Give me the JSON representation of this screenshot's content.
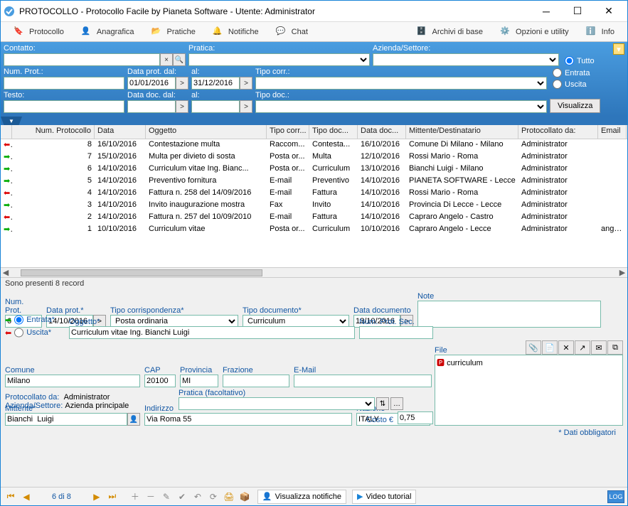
{
  "window": {
    "title": "PROTOCOLLO - Protocollo Facile by Pianeta Software - Utente: Administrator"
  },
  "toolbar": {
    "protocollo": "Protocollo",
    "anagrafica": "Anagrafica",
    "pratiche": "Pratiche",
    "notifiche": "Notifiche",
    "chat": "Chat",
    "archivi": "Archivi di base",
    "opzioni": "Opzioni e utility",
    "info": "Info"
  },
  "search": {
    "contatto_lbl": "Contatto:",
    "pratica_lbl": "Pratica:",
    "azienda_lbl": "Azienda/Settore:",
    "numprot_lbl": "Num. Prot.:",
    "dataprot_dal_lbl": "Data prot. dal:",
    "dataprot_dal": "01/01/2016",
    "al_lbl": "al:",
    "dataprot_al": "31/12/2016",
    "tipocorr_lbl": "Tipo corr.:",
    "testo_lbl": "Testo:",
    "datadoc_dal_lbl": "Data doc. dal:",
    "tipodoc_lbl": "Tipo doc.:",
    "visualizza_btn": "Visualizza",
    "radio_tutto": "Tutto",
    "radio_entrata": "Entrata",
    "radio_uscita": "Uscita"
  },
  "grid": {
    "cols": {
      "arrow": "",
      "num": "Num. Protocollo",
      "data": "Data",
      "oggetto": "Oggetto",
      "tipocorr": "Tipo corr...",
      "tipodoc": "Tipo doc...",
      "datadoc": "Data doc...",
      "mitt": "Mittente/Destinatario",
      "protda": "Protocollato da:",
      "email": "Email"
    },
    "rows": [
      {
        "dir": "in",
        "num": "8",
        "data": "16/10/2016",
        "ogg": "Contestazione multa",
        "tc": "Raccom...",
        "td": "Contesta...",
        "dd": "16/10/2016",
        "mitt": "Comune Di Milano - Milano",
        "pd": "Administrator",
        "em": ""
      },
      {
        "dir": "out",
        "num": "7",
        "data": "15/10/2016",
        "ogg": "Multa per divieto di sosta",
        "tc": "Posta or...",
        "td": "Multa",
        "dd": "12/10/2016",
        "mitt": "Rossi Mario - Roma",
        "pd": "Administrator",
        "em": ""
      },
      {
        "dir": "out",
        "num": "6",
        "data": "14/10/2016",
        "ogg": "Curriculum vitae Ing. Bianc...",
        "tc": "Posta or...",
        "td": "Curriculum",
        "dd": "13/10/2016",
        "mitt": "Bianchi  Luigi - Milano",
        "pd": "Administrator",
        "em": ""
      },
      {
        "dir": "out",
        "num": "5",
        "data": "14/10/2016",
        "ogg": "Preventivo fornitura",
        "tc": "E-mail",
        "td": "Preventivo",
        "dd": "14/10/2016",
        "mitt": "PIANETA SOFTWARE - Lecce",
        "pd": "Administrator",
        "em": ""
      },
      {
        "dir": "in",
        "num": "4",
        "data": "14/10/2016",
        "ogg": "Fattura n. 258 del 14/09/2016",
        "tc": "E-mail",
        "td": "Fattura",
        "dd": "14/10/2016",
        "mitt": "Rossi Mario - Roma",
        "pd": "Administrator",
        "em": ""
      },
      {
        "dir": "out",
        "num": "3",
        "data": "14/10/2016",
        "ogg": "Invito inaugurazione mostra",
        "tc": "Fax",
        "td": "Invito",
        "dd": "14/10/2016",
        "mitt": "Provincia Di Lecce - Lecce",
        "pd": "Administrator",
        "em": ""
      },
      {
        "dir": "in",
        "num": "2",
        "data": "14/10/2016",
        "ogg": "Fattura n. 257 del 10/09/2010",
        "tc": "E-mail",
        "td": "Fattura",
        "dd": "14/10/2016",
        "mitt": "Capraro Angelo - Castro",
        "pd": "Administrator",
        "em": ""
      },
      {
        "dir": "out",
        "num": "1",
        "data": "10/10/2016",
        "ogg": "Curriculum vitae",
        "tc": "Posta or...",
        "td": "Curriculum",
        "dd": "10/10/2016",
        "mitt": "Capraro Angelo - Lecce",
        "pd": "Administrator",
        "em": "angelo@t"
      }
    ]
  },
  "status": "Sono presenti 8 record",
  "detail": {
    "numprot_lbl": "Num. Prot.",
    "numprot": "6",
    "dataprot_lbl": "Data prot.*",
    "dataprot": "14/10/2016",
    "tipocorr_lbl": "Tipo corrispondenza*",
    "tipocorr": "Posta ordinaria",
    "tipodoc_lbl": "Tipo documento*",
    "tipodoc": "Curriculum",
    "datadoc_lbl": "Data documento",
    "datadoc": "13/10/2016",
    "note_lbl": "Note",
    "entrata_lbl": "Entrata*",
    "uscita_lbl": "Uscita*",
    "oggetto_lbl": "Oggetto*",
    "oggetto": "Curriculum vitae Ing. Bianchi Luigi",
    "numprotsec_lbl": "Num. Prot. Sec.",
    "mittente_lbl": "Mittente*",
    "mittente": "Bianchi  Luigi",
    "indirizzo_lbl": "Indirizzo",
    "indirizzo": "Via Roma 55",
    "nazione_lbl": "Nazione",
    "nazione": "ITALY",
    "file_lbl": "File",
    "file_item": "curriculum",
    "comune_lbl": "Comune",
    "comune": "Milano",
    "cap_lbl": "CAP",
    "cap": "20100",
    "provincia_lbl": "Provincia",
    "provincia": "MI",
    "frazione_lbl": "Frazione",
    "frazione": "",
    "email_lbl": "E-Mail",
    "email": "",
    "protda_lbl": "Protocollato da:",
    "protda": "Administrator",
    "azsett_lbl": "Azienda/Settore:",
    "azsett": "Azienda principale",
    "pratica_lbl": "Pratica (facoltativo)",
    "costo_lbl": "Costo €",
    "costo": "0,75",
    "oblig": "* Dati obbligatori"
  },
  "footer": {
    "page": "6 di 8",
    "visnot": "Visualizza notifiche",
    "video": "Video tutorial",
    "log": "LOG"
  },
  "colors": {
    "accent": "#1156a3",
    "bar1": "#4a9de0",
    "bar2": "#2e76bb"
  },
  "col_widths": {
    "arrow": 16,
    "num": 116,
    "data": 72,
    "ogg": 170,
    "tc": 60,
    "td": 68,
    "dd": 68,
    "mitt": 158,
    "pd": 112,
    "em": 40
  }
}
